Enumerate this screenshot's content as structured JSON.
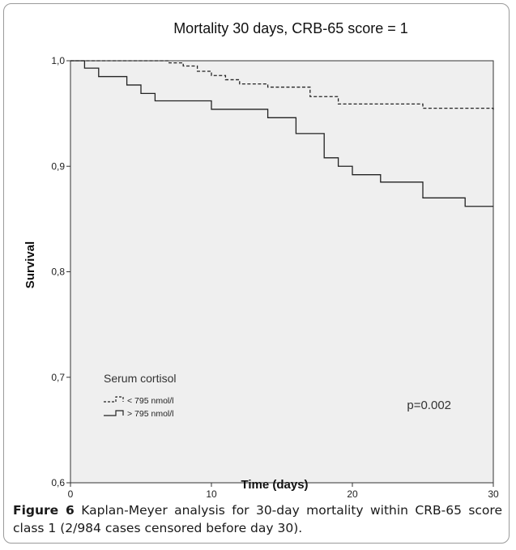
{
  "chart_data": {
    "type": "line",
    "step": true,
    "title": "Mortality 30 days, CRB-65 score = 1",
    "xlabel": "Time (days)",
    "ylabel": "Survival",
    "xlim": [
      0,
      30
    ],
    "ylim": [
      0.6,
      1.0
    ],
    "x_ticks": [
      0,
      10,
      20,
      30
    ],
    "x_tick_labels": [
      "0",
      "10",
      "20",
      "30"
    ],
    "y_ticks": [
      0.6,
      0.7,
      0.8,
      0.9,
      1.0
    ],
    "y_tick_labels": [
      "0,6",
      "0,7",
      "0,8",
      "0,9",
      "1,0"
    ],
    "grid": false,
    "plot_background": "#efefef",
    "legend": {
      "title": "Serum cortisol",
      "placement": "bottom-left"
    },
    "annotation": "p=0.002",
    "series": [
      {
        "name": "< 795 nmol/l",
        "dash": "dashed",
        "color": "#222222",
        "x": [
          0,
          7,
          8,
          9,
          10,
          11,
          12,
          14,
          17,
          19,
          25,
          30
        ],
        "y": [
          1.0,
          0.998,
          0.995,
          0.99,
          0.986,
          0.982,
          0.978,
          0.975,
          0.966,
          0.959,
          0.955,
          0.953
        ]
      },
      {
        "name": "> 795 nmol/l",
        "dash": "solid",
        "color": "#222222",
        "x": [
          0,
          1,
          2,
          4,
          5,
          6,
          10,
          14,
          16,
          18,
          19,
          20,
          22,
          25,
          28,
          30
        ],
        "y": [
          1.0,
          0.993,
          0.985,
          0.977,
          0.969,
          0.962,
          0.954,
          0.946,
          0.931,
          0.908,
          0.9,
          0.892,
          0.885,
          0.87,
          0.862,
          0.862
        ]
      }
    ]
  },
  "caption": {
    "figure_label": "Figure 6",
    "text": "Kaplan-Meyer analysis for 30-day mortality within CRB-65 score class 1 (2/984 cases censored before day 30)."
  }
}
